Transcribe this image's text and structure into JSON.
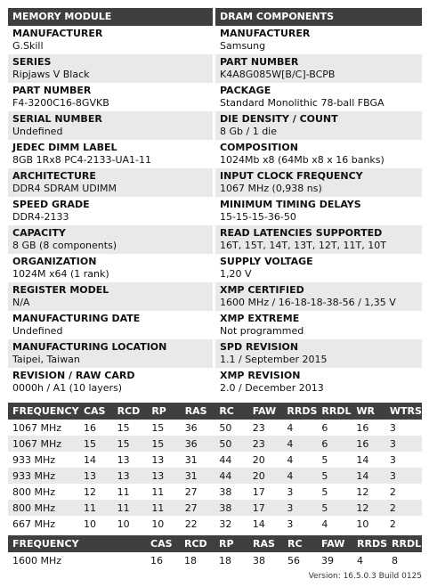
{
  "module": {
    "header": "MEMORY MODULE",
    "rows": [
      {
        "label": "MANUFACTURER",
        "value": "G.Skill"
      },
      {
        "label": "SERIES",
        "value": "Ripjaws V Black"
      },
      {
        "label": "PART NUMBER",
        "value": "F4-3200C16-8GVKB"
      },
      {
        "label": "SERIAL NUMBER",
        "value": "Undefined"
      },
      {
        "label": "JEDEC DIMM LABEL",
        "value": "8GB 1Rx8 PC4-2133-UA1-11"
      },
      {
        "label": "ARCHITECTURE",
        "value": "DDR4 SDRAM UDIMM"
      },
      {
        "label": "SPEED GRADE",
        "value": "DDR4-2133"
      },
      {
        "label": "CAPACITY",
        "value": "8 GB (8 components)"
      },
      {
        "label": "ORGANIZATION",
        "value": "1024M x64 (1 rank)"
      },
      {
        "label": "REGISTER MODEL",
        "value": "N/A"
      },
      {
        "label": "MANUFACTURING DATE",
        "value": "Undefined"
      },
      {
        "label": "MANUFACTURING LOCATION",
        "value": "Taipei, Taiwan"
      },
      {
        "label": "REVISION / RAW CARD",
        "value": "0000h / A1 (10 layers)"
      }
    ]
  },
  "dram": {
    "header": "DRAM COMPONENTS",
    "rows": [
      {
        "label": "MANUFACTURER",
        "value": "Samsung"
      },
      {
        "label": "PART NUMBER",
        "value": "K4A8G085W[B/C]-BCPB"
      },
      {
        "label": "PACKAGE",
        "value": "Standard Monolithic 78-ball FBGA"
      },
      {
        "label": "DIE DENSITY / COUNT",
        "value": "8 Gb / 1 die"
      },
      {
        "label": "COMPOSITION",
        "value": "1024Mb x8 (64Mb x8 x 16 banks)"
      },
      {
        "label": "INPUT CLOCK FREQUENCY",
        "value": "1067 MHz (0,938 ns)"
      },
      {
        "label": "MINIMUM TIMING DELAYS",
        "value": "15-15-15-36-50"
      },
      {
        "label": "READ LATENCIES SUPPORTED",
        "value": "16T, 15T, 14T, 13T, 12T, 11T, 10T"
      },
      {
        "label": "SUPPLY VOLTAGE",
        "value": "1,20 V"
      },
      {
        "label": "XMP CERTIFIED",
        "value": "1600 MHz / 16-18-18-38-56 / 1,35 V"
      },
      {
        "label": "XMP EXTREME",
        "value": "Not programmed"
      },
      {
        "label": "SPD REVISION",
        "value": "1.1 / September 2015"
      },
      {
        "label": "XMP REVISION",
        "value": "2.0 / December 2013"
      }
    ]
  },
  "jedec_table": {
    "columns": [
      "FREQUENCY",
      "CAS",
      "RCD",
      "RP",
      "RAS",
      "RC",
      "FAW",
      "RRDS",
      "RRDL",
      "WR",
      "WTRS"
    ],
    "rows": [
      [
        "1067 MHz",
        "16",
        "15",
        "15",
        "36",
        "50",
        "23",
        "4",
        "6",
        "16",
        "3"
      ],
      [
        "1067 MHz",
        "15",
        "15",
        "15",
        "36",
        "50",
        "23",
        "4",
        "6",
        "16",
        "3"
      ],
      [
        "933 MHz",
        "14",
        "13",
        "13",
        "31",
        "44",
        "20",
        "4",
        "5",
        "14",
        "3"
      ],
      [
        "933 MHz",
        "13",
        "13",
        "13",
        "31",
        "44",
        "20",
        "4",
        "5",
        "14",
        "3"
      ],
      [
        "800 MHz",
        "12",
        "11",
        "11",
        "27",
        "38",
        "17",
        "3",
        "5",
        "12",
        "2"
      ],
      [
        "800 MHz",
        "11",
        "11",
        "11",
        "27",
        "38",
        "17",
        "3",
        "5",
        "12",
        "2"
      ],
      [
        "667 MHz",
        "10",
        "10",
        "10",
        "22",
        "32",
        "14",
        "3",
        "4",
        "10",
        "2"
      ]
    ]
  },
  "xmp_table": {
    "columns": [
      "FREQUENCY",
      "CAS",
      "RCD",
      "RP",
      "RAS",
      "RC",
      "FAW",
      "RRDS",
      "RRDL"
    ],
    "rows": [
      [
        "1600 MHz",
        "16",
        "18",
        "18",
        "38",
        "56",
        "39",
        "4",
        "8"
      ]
    ]
  },
  "version": "Version: 16.5.0.3 Build 0125"
}
